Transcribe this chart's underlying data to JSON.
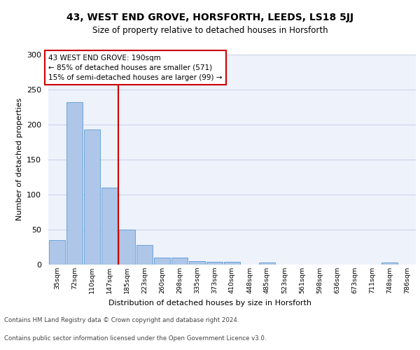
{
  "title1": "43, WEST END GROVE, HORSFORTH, LEEDS, LS18 5JJ",
  "title2": "Size of property relative to detached houses in Horsforth",
  "xlabel": "Distribution of detached houses by size in Horsforth",
  "ylabel": "Number of detached properties",
  "bar_labels": [
    "35sqm",
    "72sqm",
    "110sqm",
    "147sqm",
    "185sqm",
    "223sqm",
    "260sqm",
    "298sqm",
    "335sqm",
    "373sqm",
    "410sqm",
    "448sqm",
    "485sqm",
    "523sqm",
    "561sqm",
    "598sqm",
    "636sqm",
    "673sqm",
    "711sqm",
    "748sqm",
    "786sqm"
  ],
  "bar_values": [
    35,
    232,
    193,
    110,
    50,
    28,
    10,
    10,
    5,
    4,
    4,
    0,
    3,
    0,
    0,
    0,
    0,
    0,
    0,
    3,
    0
  ],
  "bar_color": "#aec6e8",
  "bar_edgecolor": "#5b9bd5",
  "vline_color": "#cc0000",
  "annotation_title": "43 WEST END GROVE: 190sqm",
  "annotation_line1": "← 85% of detached houses are smaller (571)",
  "annotation_line2": "15% of semi-detached houses are larger (99) →",
  "annotation_box_facecolor": "#ffffff",
  "annotation_box_edgecolor": "#cc0000",
  "ylim": [
    0,
    300
  ],
  "yticks": [
    0,
    50,
    100,
    150,
    200,
    250,
    300
  ],
  "footer1": "Contains HM Land Registry data © Crown copyright and database right 2024.",
  "footer2": "Contains public sector information licensed under the Open Government Licence v3.0.",
  "bg_color": "#eef2fb",
  "grid_color": "#c8d0e8",
  "vline_x_index": 4
}
